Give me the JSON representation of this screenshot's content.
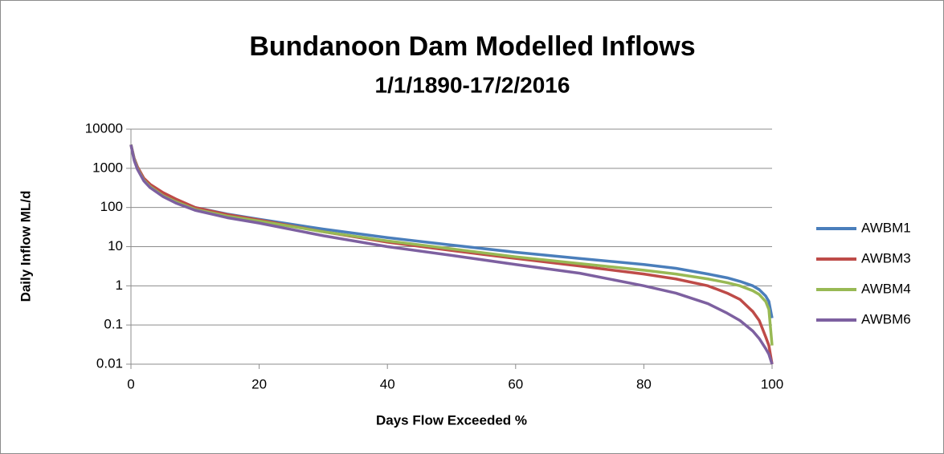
{
  "chart_data": {
    "type": "line",
    "title": "Bundanoon Dam Modelled Inflows",
    "subtitle": "1/1/1890-17/2/2016",
    "x_label": "Days Flow Exceeded %",
    "y_label": "Daily Inflow ML/d",
    "x": [
      0,
      0.5,
      1,
      2,
      3,
      5,
      7,
      10,
      15,
      20,
      30,
      40,
      50,
      60,
      70,
      80,
      85,
      90,
      93,
      95,
      97,
      98,
      99,
      99.5,
      100
    ],
    "series": [
      {
        "name": "AWBM1",
        "color": "#4a7ebb",
        "values": [
          4000,
          1800,
          1100,
          550,
          380,
          230,
          160,
          100,
          68,
          50,
          28,
          17,
          11,
          7.2,
          5,
          3.5,
          2.8,
          2,
          1.6,
          1.3,
          1,
          0.8,
          0.55,
          0.4,
          0.15
        ]
      },
      {
        "name": "AWBM3",
        "color": "#be4b48",
        "values": [
          4000,
          1800,
          1100,
          560,
          390,
          240,
          165,
          100,
          66,
          48,
          24,
          13,
          8,
          5,
          3.2,
          2,
          1.5,
          1,
          0.65,
          0.45,
          0.22,
          0.13,
          0.05,
          0.03,
          0.01
        ]
      },
      {
        "name": "AWBM4",
        "color": "#98b954",
        "values": [
          4000,
          1700,
          1000,
          500,
          340,
          200,
          140,
          90,
          60,
          45,
          24,
          14,
          8.8,
          5.5,
          3.7,
          2.5,
          2,
          1.5,
          1.2,
          1,
          0.75,
          0.6,
          0.4,
          0.25,
          0.03
        ]
      },
      {
        "name": "AWBM6",
        "color": "#7d60a0",
        "values": [
          4000,
          1600,
          950,
          480,
          320,
          190,
          130,
          85,
          55,
          40,
          19,
          10,
          6,
          3.5,
          2.1,
          1,
          0.65,
          0.35,
          0.2,
          0.13,
          0.07,
          0.045,
          0.025,
          0.018,
          0.01
        ]
      }
    ],
    "xlim": [
      0,
      100
    ],
    "xticks": [
      0,
      20,
      40,
      60,
      80,
      100
    ],
    "ylim": [
      0.01,
      10000
    ],
    "yticks": [
      10000,
      1000,
      100,
      10,
      1,
      0.1,
      0.01
    ],
    "log_y": true,
    "grid": true,
    "legend": "right"
  }
}
